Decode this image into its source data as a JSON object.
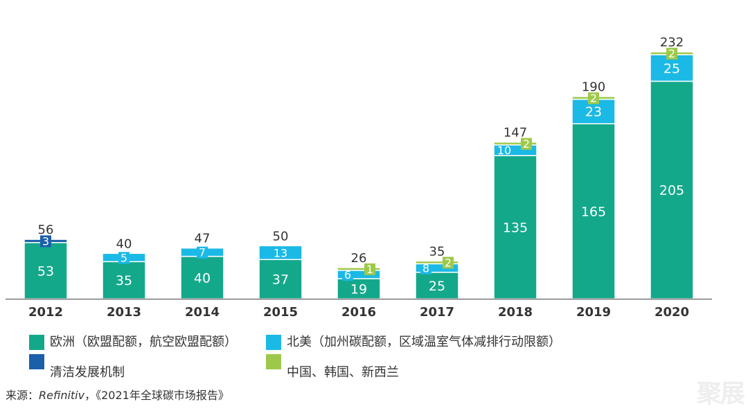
{
  "chart_data": {
    "type": "bar",
    "stacked": true,
    "categories": [
      "2012",
      "2013",
      "2014",
      "2015",
      "2016",
      "2017",
      "2018",
      "2019",
      "2020"
    ],
    "series": [
      {
        "name": "欧洲（欧盟配额，航空欧盟配额）",
        "color": "#14a88b",
        "values": [
          53,
          35,
          40,
          37,
          19,
          25,
          135,
          165,
          205
        ]
      },
      {
        "name": "清洁发展机制",
        "color": "#1a5fa8",
        "values": [
          3,
          0,
          0,
          0,
          0,
          0,
          0,
          0,
          0
        ]
      },
      {
        "name": "北美（加州碳配额，区域温室气体减排行动限额）",
        "color": "#1bb9e6",
        "values": [
          0,
          5,
          7,
          13,
          6,
          8,
          10,
          23,
          25
        ]
      },
      {
        "name": "中国、韩国、新西兰",
        "color": "#9dc94a",
        "values": [
          0,
          0,
          0,
          0,
          1,
          2,
          2,
          2,
          2
        ]
      }
    ],
    "totals": [
      56,
      40,
      47,
      50,
      26,
      35,
      147,
      190,
      232
    ],
    "ylim": [
      0,
      240
    ],
    "grid": false,
    "legend_position": "bottom"
  },
  "legend": [
    {
      "label": "欧洲（欧盟配额，航空欧盟配额）",
      "color": "#14a88b"
    },
    {
      "label": "北美（加州碳配额，区域温室气体减排行动限额）",
      "color": "#1bb9e6"
    },
    {
      "label": "清洁发展机制",
      "color": "#1a5fa8"
    },
    {
      "label": "中国、韩国、新西兰",
      "color": "#9dc94a"
    }
  ],
  "source": {
    "prefix": "来源：",
    "name": "Refinitiv",
    "sep": "，",
    "report": "《2021年全球碳市场报告》"
  },
  "watermark": "聚展"
}
